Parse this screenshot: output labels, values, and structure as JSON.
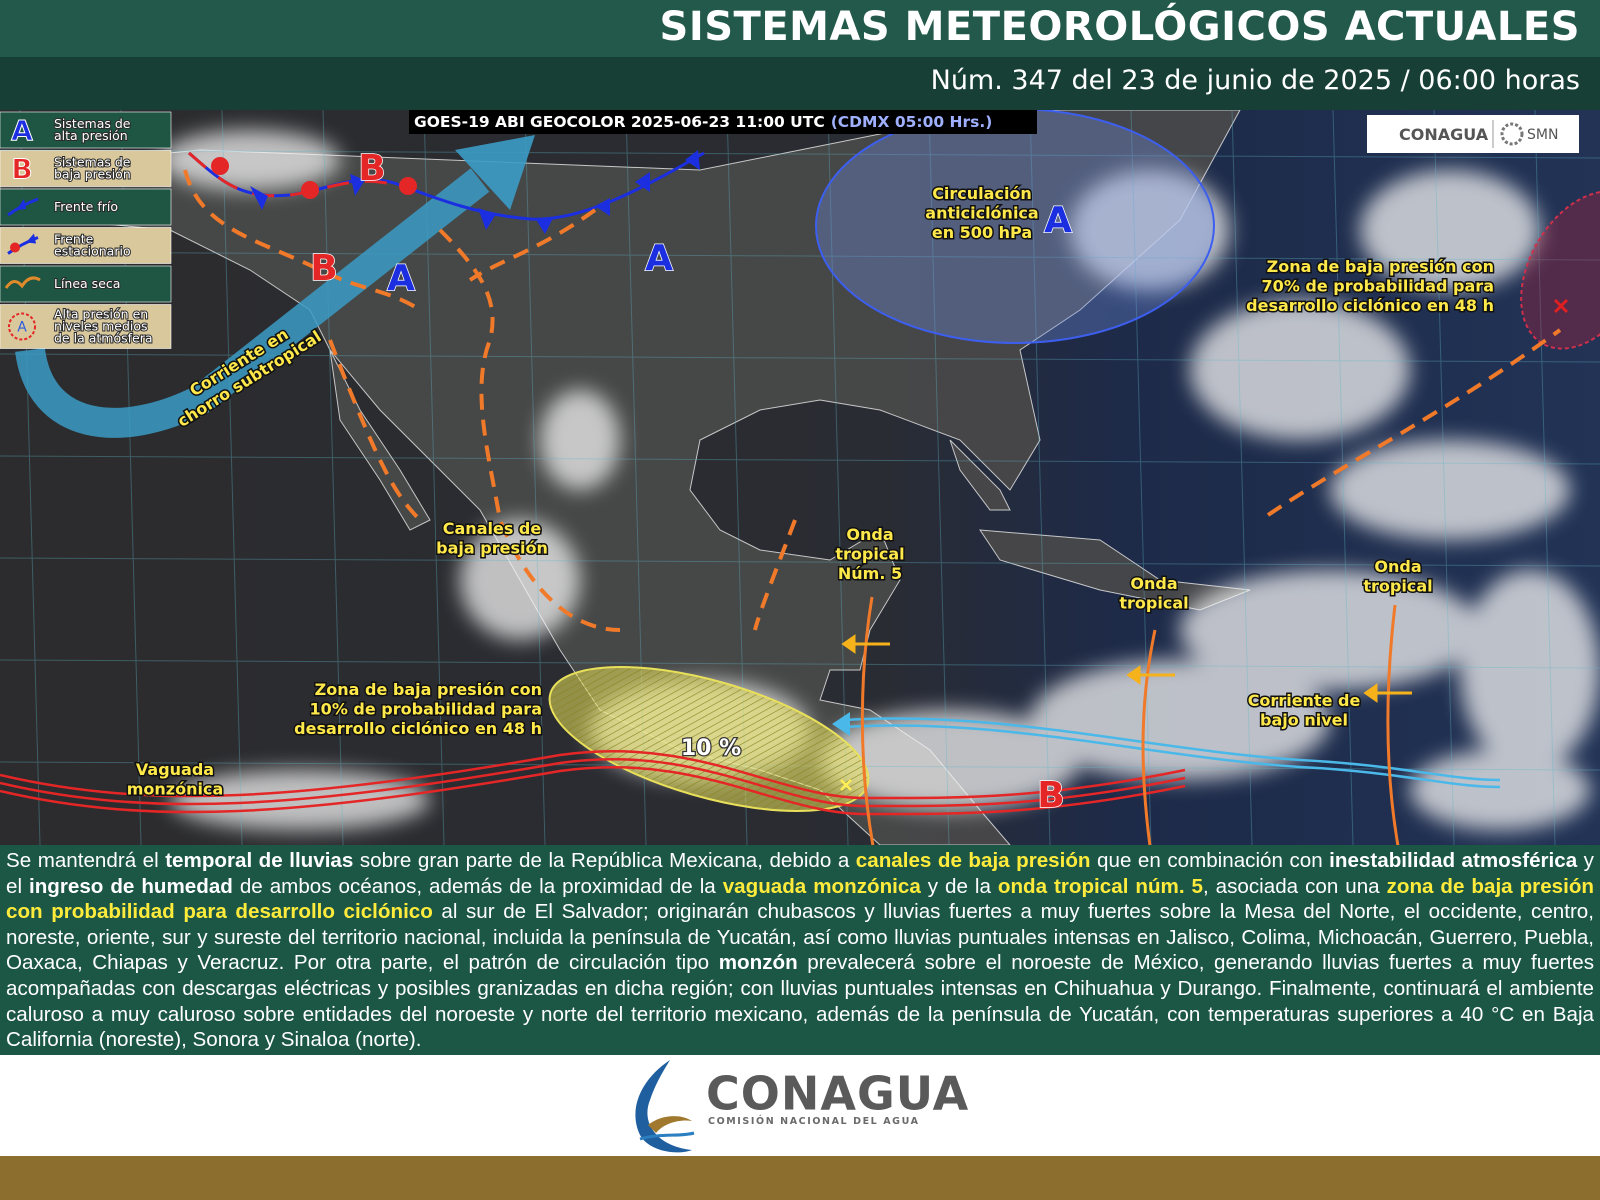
{
  "header": {
    "title": "SISTEMAS METEOROLÓGICOS ACTUALES",
    "subtitle": "Núm. 347 del 23 de junio de 2025 / 06:00 horas"
  },
  "map": {
    "satellite": "GOES-19 ABI GEOCOLOR 2025-06-23 11:00 UTC",
    "local_time": "(CDMX  05:00 Hrs.)",
    "legend": [
      {
        "symbol": "A",
        "label": [
          "Sistemas de",
          "alta presión"
        ]
      },
      {
        "symbol": "B",
        "label": [
          "Sistemas de",
          "baja presión"
        ]
      },
      {
        "label": [
          "Frente frío"
        ]
      },
      {
        "label": [
          "Frente",
          "estacionario"
        ]
      },
      {
        "label": [
          "Línea seca"
        ]
      },
      {
        "symbol": "A",
        "label": [
          "Alta presión en",
          "niveles medios",
          "de la atmósfera"
        ]
      }
    ],
    "pressure_letters": [
      "B",
      "B",
      "A",
      "A",
      "A",
      "B"
    ],
    "labels": {
      "jet": [
        "Corriente en",
        "chorro subtropical"
      ],
      "anticyclone": [
        "Circulación",
        "anticiclónica",
        "en 500 hPa"
      ],
      "atlantic_low": [
        "Zona de baja presión con",
        "70% de probabilidad para",
        "desarrollo ciclónico en 48 h"
      ],
      "troughs": [
        "Canales de",
        "baja presión"
      ],
      "wave5": [
        "Onda",
        "tropical",
        "Núm. 5"
      ],
      "wave_a": [
        "Onda",
        "tropical"
      ],
      "wave_b": [
        "Onda",
        "tropical"
      ],
      "low_level_jet": [
        "Corriente de",
        "bajo  nivel"
      ],
      "pacific_low": [
        "Zona de baja presión con",
        "10% de probabilidad para",
        "desarrollo ciclónico en 48 h"
      ],
      "monsoon": [
        "Vaguada",
        "monzónica"
      ]
    },
    "low_zone_percent": "10 %",
    "logos": {
      "conagua": "CONAGUA",
      "smn": "SMN"
    }
  },
  "bulletin": [
    {
      "text": "Se mantendrá el "
    },
    {
      "text": "temporal de lluvias",
      "emphasis": "bold"
    },
    {
      "text": " sobre gran parte de la República Mexicana, debido a "
    },
    {
      "text": "canales de baja presión",
      "emphasis": "yellow"
    },
    {
      "text": " que en combinación con "
    },
    {
      "text": "inestabilidad atmosférica",
      "emphasis": "bold"
    },
    {
      "text": " y el "
    },
    {
      "text": "ingreso de humedad",
      "emphasis": "bold"
    },
    {
      "text": " de ambos océanos, además de la proximidad de la "
    },
    {
      "text": "vaguada monzónica",
      "emphasis": "yellow"
    },
    {
      "text": " y de la "
    },
    {
      "text": "onda tropical núm. 5",
      "emphasis": "yellow"
    },
    {
      "text": ", asociada con una "
    },
    {
      "text": "zona de baja presión con probabilidad para desarrollo ciclónico",
      "emphasis": "yellow"
    },
    {
      "text": " al sur de El Salvador; originarán chubascos y lluvias fuertes a muy fuertes sobre la Mesa del Norte, el occidente, centro, noreste, oriente, sur y sureste del territorio nacional, incluida la península de Yucatán, así como lluvias puntuales intensas en Jalisco, Colima, Michoacán, Guerrero, Puebla, Oaxaca, Chiapas y Veracruz. Por otra parte, el patrón de circulación tipo "
    },
    {
      "text": "monzón",
      "emphasis": "bold"
    },
    {
      "text": " prevalecerá sobre el noroeste de México, generando lluvias fuertes a muy fuertes acompañadas con descargas eléctricas y posibles granizadas en dicha región; con lluvias puntuales intensas en Chihuahua y Durango. Finalmente, continuará el ambiente caluroso a muy caluroso sobre entidades del noroeste y norte del territorio mexicano, además de la península de Yucatán, con temperaturas superiores a 40 °C en Baja California (noreste), Sonora y Sinaloa (norte)."
    }
  ],
  "footer": {
    "name": "CONAGUA",
    "full_name": "COMISIÓN NACIONAL DEL AGUA"
  }
}
